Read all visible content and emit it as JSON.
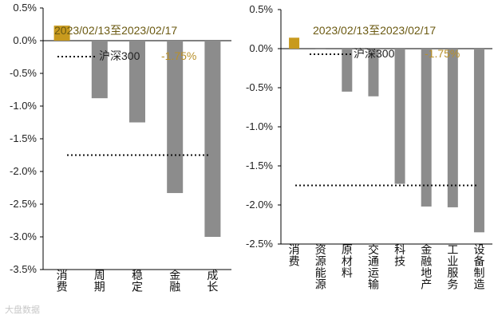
{
  "watermark": "大盘数据",
  "chart_data": [
    {
      "type": "bar",
      "subtitle": "2023/02/13至2023/02/17",
      "categories": [
        "消费",
        "周期",
        "稳定",
        "金融",
        "成长"
      ],
      "values": [
        0.23,
        -0.88,
        -1.25,
        -2.33,
        -3.0
      ],
      "ylim": [
        -3.5,
        0.5
      ],
      "yticks": [
        "0.5%",
        "0.0%",
        "-0.5%",
        "-1.0%",
        "-1.5%",
        "-2.0%",
        "-2.5%",
        "-3.0%",
        "-3.5%"
      ],
      "benchmark": {
        "label": "沪深300",
        "value": -1.75,
        "value_label": "-1.75%"
      },
      "colors": {
        "highlight": "#c89a1e",
        "bar": "#8c8c8c",
        "label": "#b8902a"
      }
    },
    {
      "type": "bar",
      "subtitle": "2023/02/13至2023/02/17",
      "categories": [
        "消费",
        "资源能源",
        "原材料",
        "交通运输",
        "科技",
        "金融地产",
        "工业服务",
        "设备制造"
      ],
      "values": [
        0.14,
        -0.01,
        -0.55,
        -0.61,
        -1.73,
        -2.02,
        -2.03,
        -2.35
      ],
      "ylim": [
        -2.5,
        0.5
      ],
      "yticks": [
        "0.5%",
        "0.0%",
        "-0.5%",
        "-1.0%",
        "-1.5%",
        "-2.0%",
        "-2.5%"
      ],
      "benchmark": {
        "label": "沪深300",
        "value": -1.75,
        "value_label": "-1.75%"
      },
      "colors": {
        "highlight": "#c89a1e",
        "bar": "#8c8c8c",
        "label": "#b8902a"
      }
    }
  ]
}
